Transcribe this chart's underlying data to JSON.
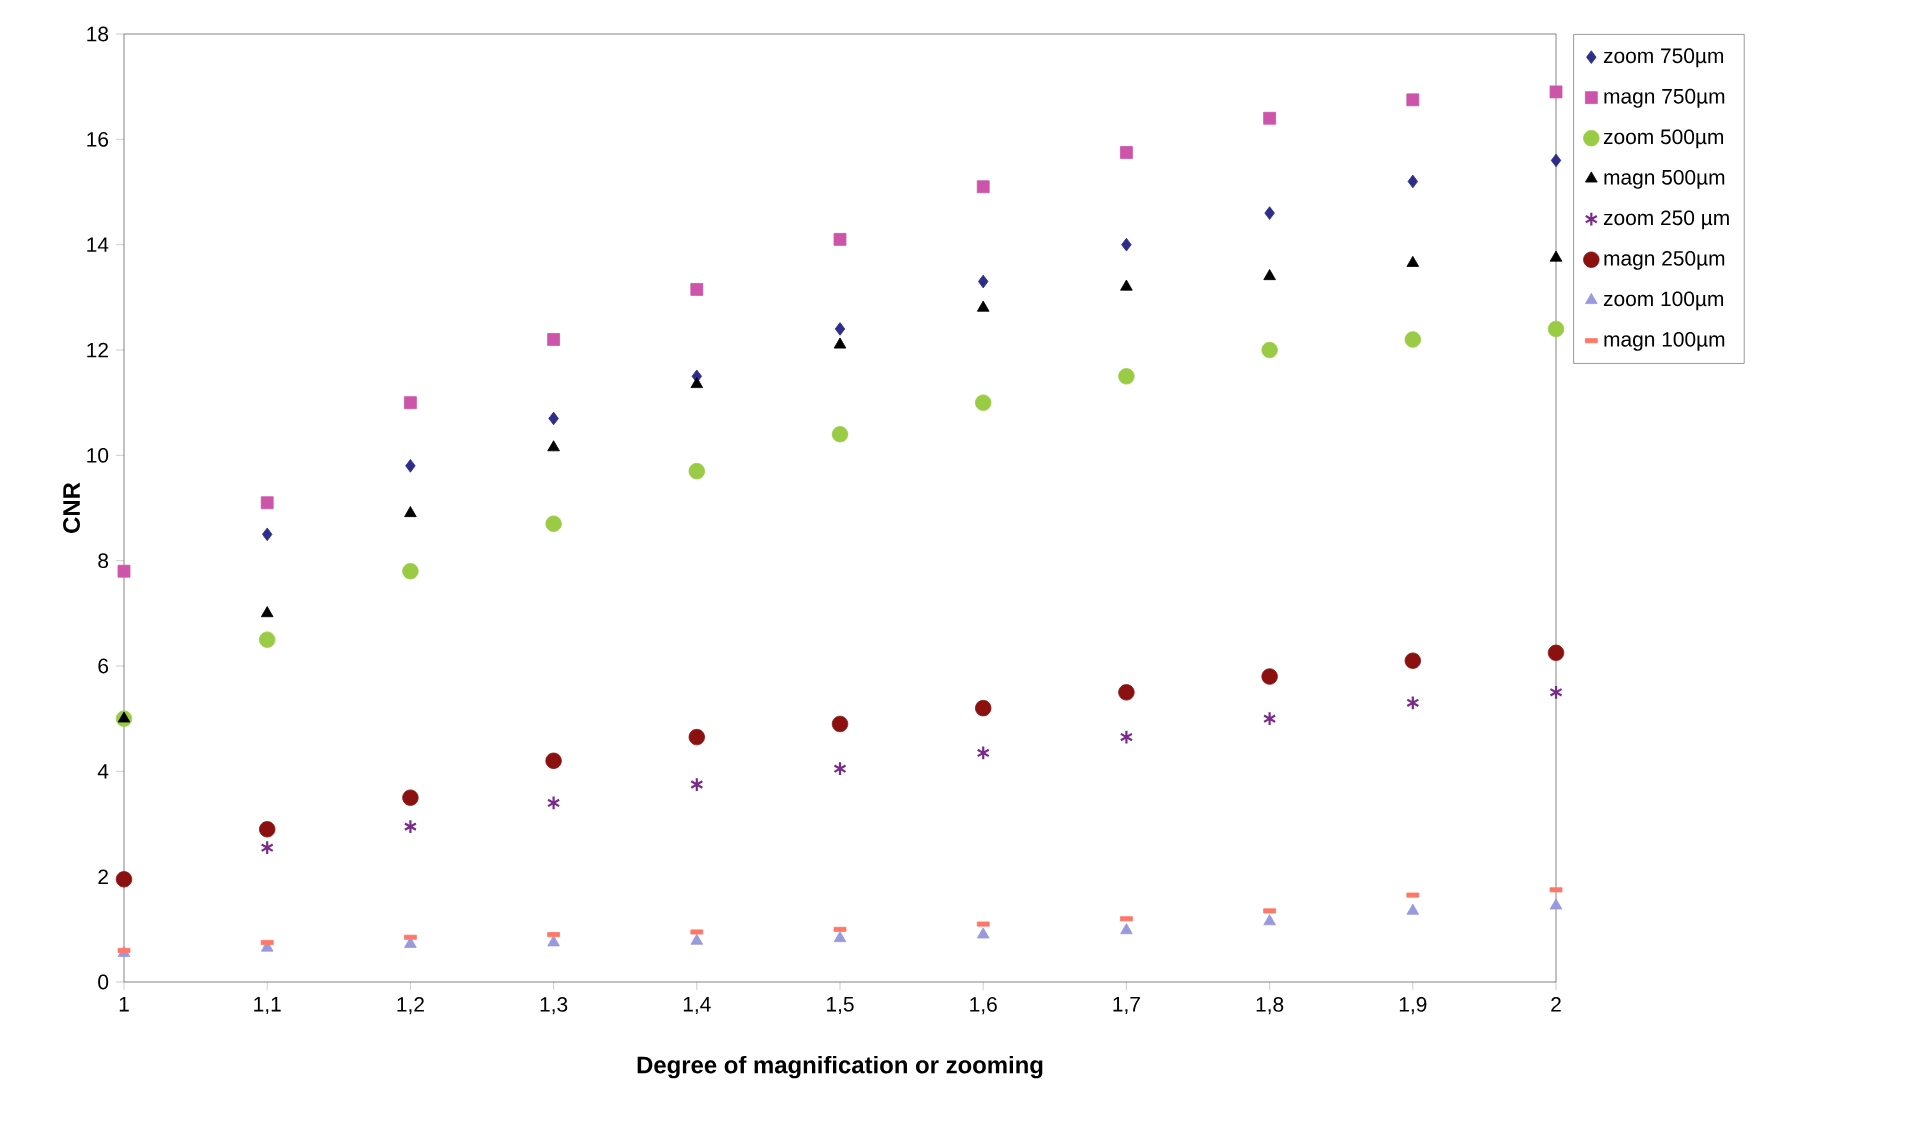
{
  "chart_data": {
    "type": "scatter",
    "xlabel": "Degree of magnification or zooming",
    "ylabel": "CNR",
    "x": [
      1,
      1.1,
      1.2,
      1.3,
      1.4,
      1.5,
      1.6,
      1.7,
      1.8,
      1.9,
      2
    ],
    "xlim": [
      1,
      2
    ],
    "ylim": [
      0,
      18
    ],
    "xticks": [
      1,
      {
        "value": 1.1,
        "label": "1,1"
      },
      {
        "value": 1.2,
        "label": "1,2"
      },
      {
        "value": 1.3,
        "label": "1,3"
      },
      {
        "value": 1.4,
        "label": "1,4"
      },
      {
        "value": 1.5,
        "label": "1,5"
      },
      {
        "value": 1.6,
        "label": "1,6"
      },
      {
        "value": 1.7,
        "label": "1,7"
      },
      {
        "value": 1.8,
        "label": "1,8"
      },
      {
        "value": 1.9,
        "label": "1,9"
      },
      2
    ],
    "yticks": [
      0,
      2,
      4,
      6,
      8,
      10,
      12,
      14,
      16,
      18
    ],
    "grid": false,
    "legend": "right",
    "series": [
      {
        "name": "zoom 750µm",
        "color": "#2e2e8a",
        "marker": "diamond",
        "values": [
          null,
          8.5,
          9.8,
          10.7,
          11.5,
          12.4,
          13.3,
          14.0,
          14.6,
          15.2,
          15.6
        ]
      },
      {
        "name": "magn 750µm",
        "color": "#cc55aa",
        "marker": "square",
        "values": [
          7.8,
          9.1,
          11.0,
          12.2,
          13.15,
          14.1,
          15.1,
          15.75,
          16.4,
          16.75,
          16.9
        ]
      },
      {
        "name": "zoom 500µm",
        "color": "#99cc44",
        "marker": "circle",
        "values": [
          5.0,
          6.5,
          7.8,
          8.7,
          9.7,
          10.4,
          11.0,
          11.5,
          12.0,
          12.2,
          12.4
        ]
      },
      {
        "name": "magn 500µm",
        "color": "#000000",
        "marker": "triangle",
        "values": [
          5.0,
          7.0,
          8.9,
          10.15,
          11.35,
          12.1,
          12.8,
          13.2,
          13.4,
          13.65,
          13.75
        ]
      },
      {
        "name": "zoom 250 µm",
        "color": "#7a2a8a",
        "marker": "cross",
        "values": [
          null,
          2.55,
          2.95,
          3.4,
          3.75,
          4.05,
          4.35,
          4.65,
          5.0,
          5.3,
          5.5
        ]
      },
      {
        "name": "magn 250µm",
        "color": "#8b1010",
        "marker": "circle",
        "values": [
          1.95,
          2.9,
          3.5,
          4.2,
          4.65,
          4.9,
          5.2,
          5.5,
          5.8,
          6.1,
          6.25
        ]
      },
      {
        "name": "zoom 100µm",
        "color": "#9999dd",
        "marker": "triangle",
        "values": [
          0.55,
          0.65,
          0.72,
          0.75,
          0.78,
          0.83,
          0.9,
          0.98,
          1.15,
          1.35,
          1.45
        ]
      },
      {
        "name": "magn 100µm",
        "color": "#ff7766",
        "marker": "square",
        "values": [
          0.6,
          0.75,
          0.85,
          0.9,
          0.95,
          1.0,
          1.1,
          1.2,
          1.35,
          1.65,
          1.75
        ]
      }
    ]
  }
}
